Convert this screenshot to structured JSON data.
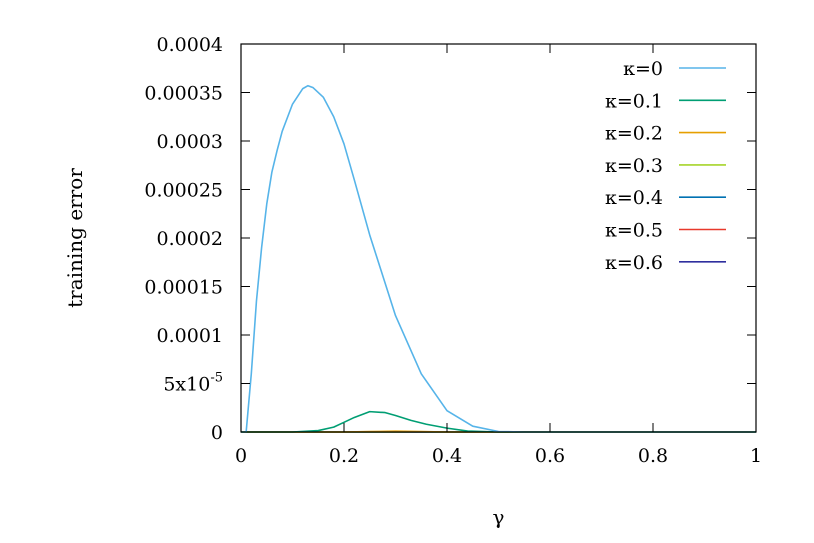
{
  "chart_data": {
    "type": "line",
    "title": "",
    "xlabel": "γ",
    "ylabel": "training error",
    "xlim": [
      0,
      1
    ],
    "ylim": [
      0,
      0.0004
    ],
    "x_ticks": [
      {
        "value": 0,
        "label": "0"
      },
      {
        "value": 0.2,
        "label": "0.2"
      },
      {
        "value": 0.4,
        "label": "0.4"
      },
      {
        "value": 0.6,
        "label": "0.6"
      },
      {
        "value": 0.8,
        "label": "0.8"
      },
      {
        "value": 1,
        "label": "1"
      }
    ],
    "y_ticks": [
      {
        "value": 0,
        "label": "0"
      },
      {
        "value": 5e-05,
        "label": "5x10",
        "sup": "-5"
      },
      {
        "value": 0.0001,
        "label": "0.0001"
      },
      {
        "value": 0.00015,
        "label": "0.00015"
      },
      {
        "value": 0.0002,
        "label": "0.0002"
      },
      {
        "value": 0.00025,
        "label": "0.00025"
      },
      {
        "value": 0.0003,
        "label": "0.0003"
      },
      {
        "value": 0.00035,
        "label": "0.00035"
      },
      {
        "value": 0.0004,
        "label": "0.0004"
      }
    ],
    "grid": false,
    "legend_position": "top-right",
    "series": [
      {
        "name": "κ=0",
        "color": "#56b4e9",
        "x": [
          0,
          0.01,
          0.02,
          0.03,
          0.04,
          0.05,
          0.06,
          0.07,
          0.08,
          0.1,
          0.12,
          0.13,
          0.14,
          0.16,
          0.18,
          0.2,
          0.22,
          0.25,
          0.3,
          0.35,
          0.4,
          0.45,
          0.5,
          0.55,
          0.6,
          1.0
        ],
        "y": [
          0,
          0,
          6e-05,
          0.000135,
          0.00019,
          0.000235,
          0.000268,
          0.00029,
          0.00031,
          0.000338,
          0.000354,
          0.000357,
          0.000355,
          0.000345,
          0.000325,
          0.000297,
          0.00026,
          0.000203,
          0.00012,
          6e-05,
          2.2e-05,
          6e-06,
          5e-07,
          0,
          0,
          0
        ]
      },
      {
        "name": "κ=0.1",
        "color": "#009e73",
        "x": [
          0,
          0.1,
          0.15,
          0.18,
          0.2,
          0.22,
          0.25,
          0.28,
          0.3,
          0.33,
          0.36,
          0.4,
          0.44,
          0.5,
          1.0
        ],
        "y": [
          0,
          0,
          1.5e-06,
          5e-06,
          1e-05,
          1.5e-05,
          2.1e-05,
          2e-05,
          1.7e-05,
          1.2e-05,
          8e-06,
          4e-06,
          1e-06,
          0,
          0
        ]
      },
      {
        "name": "κ=0.2",
        "color": "#e69f00",
        "x": [
          0,
          0.2,
          0.25,
          0.3,
          0.35,
          0.4,
          1.0
        ],
        "y": [
          0,
          0,
          5e-07,
          8e-07,
          5e-07,
          0,
          0
        ]
      },
      {
        "name": "κ=0.3",
        "color": "#a6d42a",
        "x": [
          0,
          0.3,
          0.34,
          0.38,
          1.0
        ],
        "y": [
          0,
          0,
          2e-07,
          0,
          0
        ]
      },
      {
        "name": "κ=0.4",
        "color": "#0072b2",
        "x": [
          0,
          1.0
        ],
        "y": [
          0,
          0
        ]
      },
      {
        "name": "κ=0.5",
        "color": "#e8392b",
        "x": [
          0,
          1.0
        ],
        "y": [
          0,
          0
        ]
      },
      {
        "name": "κ=0.6",
        "color": "#2f2f9e",
        "x": [
          0,
          1.0
        ],
        "y": [
          0,
          0
        ]
      }
    ]
  }
}
